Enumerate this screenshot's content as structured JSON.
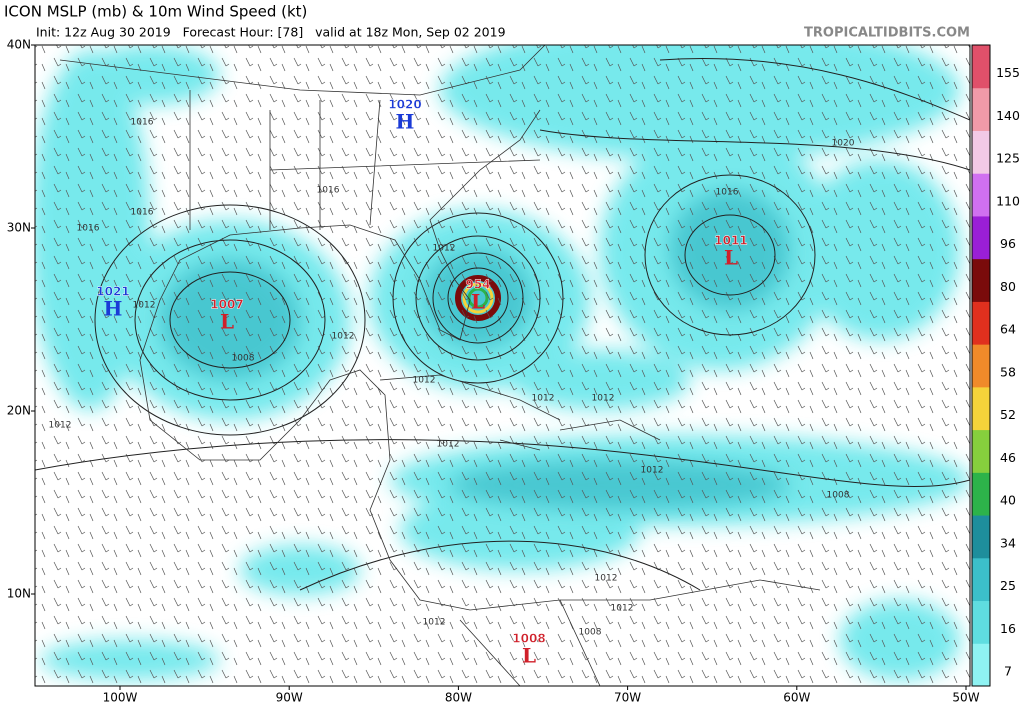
{
  "header": {
    "title": "ICON MSLP (mb) & 10m Wind Speed (kt)",
    "subtitle": "Init: 12z Aug 30 2019   Forecast Hour: [78]   valid at 18z Mon, Sep 02 2019",
    "source": "TROPICALTIDBITS.COM"
  },
  "axes": {
    "lat_labels": [
      "40N",
      "30N",
      "20N",
      "10N"
    ],
    "lon_labels": [
      "100W",
      "90W",
      "80W",
      "70W",
      "60W",
      "50W"
    ]
  },
  "colorbar": {
    "ticks": [
      7,
      16,
      25,
      34,
      40,
      46,
      52,
      58,
      64,
      80,
      96,
      110,
      125,
      140,
      155
    ],
    "colors": [
      "#8ff3f3",
      "#5fdde0",
      "#3cbfca",
      "#1e8e9c",
      "#2db34a",
      "#86cf3d",
      "#f5d33a",
      "#f08a2a",
      "#e0301e",
      "#7a0b0b",
      "#9a1fd6",
      "#d070f0",
      "#f2c9e6",
      "#f09aa8",
      "#e0506a"
    ]
  },
  "centers": [
    {
      "symbol": "H",
      "value": "1020"
    },
    {
      "symbol": "H",
      "value": "1021"
    },
    {
      "symbol": "L",
      "value": "1007"
    },
    {
      "symbol": "L",
      "value": "954"
    },
    {
      "symbol": "L",
      "value": "1011"
    },
    {
      "symbol": "L",
      "value": "1008"
    }
  ],
  "isobar_labels": [
    "1016",
    "1016",
    "1016",
    "1016",
    "1020",
    "1016",
    "1012",
    "1012",
    "1008",
    "1012",
    "1012",
    "1012",
    "1012",
    "1012",
    "1012",
    "1008",
    "1012",
    "1012",
    "1012",
    "1008",
    "1012"
  ]
}
